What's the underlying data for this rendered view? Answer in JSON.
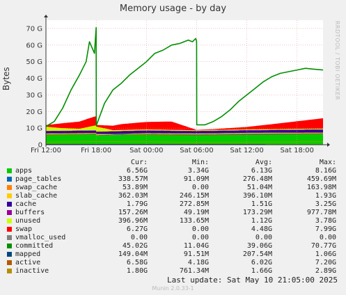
{
  "title": "Memory usage - by day",
  "ylabel": "Bytes",
  "watermark": "RRDTOOL / TOBI OETIKER",
  "footer": {
    "last_update": "Last update:  Sat May 10 21:05:00 2025",
    "munin_version": "Munin 2.0.33-1"
  },
  "legend_headers": {
    "cur": "Cur:",
    "min": "Min:",
    "avg": "Avg:",
    "max": "Max:"
  },
  "legend": [
    {
      "name": "apps",
      "color": "#00cc00",
      "cur": "6.56G",
      "min": "3.34G",
      "avg": "6.13G",
      "max": "8.16G"
    },
    {
      "name": "page_tables",
      "color": "#0066b3",
      "cur": "338.57M",
      "min": "91.09M",
      "avg": "276.48M",
      "max": "459.69M"
    },
    {
      "name": "swap_cache",
      "color": "#ff8000",
      "cur": "53.89M",
      "min": "0.00",
      "avg": "51.04M",
      "max": "163.98M"
    },
    {
      "name": "slab_cache",
      "color": "#ffcc00",
      "cur": "362.03M",
      "min": "246.15M",
      "avg": "396.10M",
      "max": "1.93G"
    },
    {
      "name": "cache",
      "color": "#330099",
      "cur": "1.79G",
      "min": "272.85M",
      "avg": "1.51G",
      "max": "3.25G"
    },
    {
      "name": "buffers",
      "color": "#990099",
      "cur": "157.26M",
      "min": "49.19M",
      "avg": "173.29M",
      "max": "977.78M"
    },
    {
      "name": "unused",
      "color": "#ccff00",
      "cur": "396.96M",
      "min": "133.65M",
      "avg": "1.12G",
      "max": "3.78G"
    },
    {
      "name": "swap",
      "color": "#ff0000",
      "cur": "6.27G",
      "min": "0.00",
      "avg": "4.48G",
      "max": "7.99G"
    },
    {
      "name": "vmalloc_used",
      "color": "#808080",
      "cur": "0.00",
      "min": "0.00",
      "avg": "0.00",
      "max": "0.00"
    },
    {
      "name": "committed",
      "color": "#008f00",
      "cur": "45.02G",
      "min": "11.04G",
      "avg": "39.06G",
      "max": "70.77G"
    },
    {
      "name": "mapped",
      "color": "#00487d",
      "cur": "149.04M",
      "min": "91.51M",
      "avg": "207.54M",
      "max": "1.06G"
    },
    {
      "name": "active",
      "color": "#b35a00",
      "cur": "6.58G",
      "min": "4.18G",
      "avg": "6.02G",
      "max": "7.20G"
    },
    {
      "name": "inactive",
      "color": "#b38f00",
      "cur": "1.80G",
      "min": "761.34M",
      "avg": "1.66G",
      "max": "2.89G"
    }
  ],
  "chart_data": {
    "type": "area",
    "title": "Memory usage - by day",
    "ylabel": "Bytes",
    "y_unit": "G",
    "ylim": [
      0,
      75
    ],
    "y_ticks": [
      0,
      10,
      20,
      30,
      40,
      50,
      60,
      70
    ],
    "y_tick_labels": [
      "0",
      "10 G",
      "20 G",
      "30 G",
      "40 G",
      "50 G",
      "60 G",
      "70 G"
    ],
    "x_unit": "hours since Fri 12:00",
    "xlim": [
      0,
      33.1
    ],
    "x_ticks": [
      0,
      6,
      12,
      18,
      24,
      30
    ],
    "x_tick_labels": [
      "Fri 12:00",
      "Fri 18:00",
      "Sat 00:00",
      "Sat 06:00",
      "Sat 12:00",
      "Sat 18:00"
    ],
    "grid": true,
    "stacked_series": [
      {
        "name": "apps",
        "color": "#00cc00",
        "x": [
          0,
          6,
          6.01,
          12,
          18,
          24,
          33.1
        ],
        "values": [
          6.0,
          6.3,
          5.5,
          6.2,
          6.0,
          6.4,
          6.56
        ]
      },
      {
        "name": "page_tables",
        "color": "#0066b3",
        "x": [
          0,
          33.1
        ],
        "values": [
          0.3,
          0.34
        ]
      },
      {
        "name": "swap_cache",
        "color": "#ff8000",
        "x": [
          0,
          33.1
        ],
        "values": [
          0.05,
          0.05
        ]
      },
      {
        "name": "slab_cache",
        "color": "#ffcc00",
        "x": [
          0,
          33.1
        ],
        "values": [
          0.4,
          0.36
        ]
      },
      {
        "name": "cache",
        "color": "#330099",
        "x": [
          0,
          6,
          12,
          18,
          24,
          33.1
        ],
        "values": [
          1.4,
          1.5,
          1.6,
          1.4,
          1.5,
          1.79
        ]
      },
      {
        "name": "buffers",
        "color": "#990099",
        "x": [
          0,
          33.1
        ],
        "values": [
          0.17,
          0.16
        ]
      },
      {
        "name": "unused",
        "color": "#ccff00",
        "x": [
          0,
          2,
          4,
          6,
          8,
          12,
          18,
          24,
          33.1
        ],
        "values": [
          2.5,
          1.5,
          1.0,
          3.0,
          0.6,
          0.5,
          0.4,
          0.4,
          0.4
        ]
      },
      {
        "name": "swap",
        "color": "#ff0000",
        "x": [
          0,
          2,
          5,
          6,
          6.01,
          9,
          12,
          15,
          18,
          20,
          24,
          27,
          33.1
        ],
        "values": [
          1.0,
          3.0,
          5.0,
          5.5,
          1.0,
          3.5,
          4.5,
          5.0,
          0.2,
          0.5,
          1.5,
          3.0,
          6.27
        ]
      },
      {
        "name": "vmalloc_used",
        "color": "#808080",
        "x": [
          0,
          33.1
        ],
        "values": [
          0,
          0
        ]
      }
    ],
    "line_series": [
      {
        "name": "committed",
        "color": "#008f00",
        "width": 1.6,
        "x": [
          0,
          1,
          2,
          3,
          4,
          4.8,
          5.2,
          5.8,
          6.0,
          6.01,
          7,
          8,
          9,
          10,
          11,
          12,
          13,
          14,
          15,
          16,
          17,
          17.5,
          17.9,
          18.0,
          18.01,
          19,
          20,
          21,
          22,
          23,
          24,
          25,
          26,
          27,
          28,
          29,
          30,
          31,
          32,
          33.1
        ],
        "values": [
          11,
          14,
          22,
          33,
          42,
          50,
          62,
          55,
          70.5,
          11.5,
          25,
          33,
          37,
          42,
          46,
          50,
          55,
          57,
          60,
          61,
          63,
          62,
          64,
          62,
          12,
          12,
          14,
          17,
          21,
          26,
          30,
          34,
          38,
          41,
          43,
          44,
          45,
          46,
          45.5,
          45
        ]
      },
      {
        "name": "mapped",
        "color": "#00487d",
        "width": 1,
        "x": [
          0,
          33.1
        ],
        "values": [
          0.2,
          0.15
        ]
      },
      {
        "name": "active",
        "color": "#b35a00",
        "width": 1,
        "x": [
          0,
          6,
          12,
          18,
          24,
          33.1
        ],
        "values": [
          6.0,
          6.5,
          6.2,
          5.8,
          6.1,
          6.58
        ]
      },
      {
        "name": "inactive",
        "color": "#b38f00",
        "width": 1,
        "x": [
          0,
          6,
          12,
          18,
          24,
          33.1
        ],
        "values": [
          1.6,
          1.8,
          1.7,
          1.5,
          1.6,
          1.8
        ]
      }
    ]
  }
}
